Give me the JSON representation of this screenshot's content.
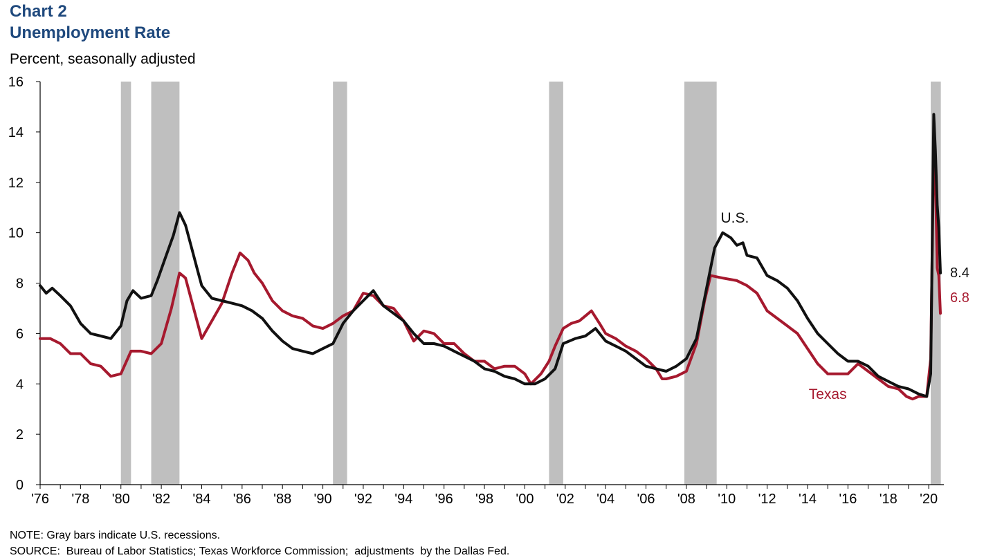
{
  "header": {
    "label": "Chart 2",
    "title": "Unemployment Rate",
    "subtitle": "Percent, seasonally adjusted"
  },
  "footer": {
    "note": "NOTE: Gray bars indicate U.S. recessions.",
    "source": "SOURCE:  Bureau of Labor Statistics; Texas Workforce Commission;  adjustments  by the Dallas Fed."
  },
  "colors": {
    "us": "#111111",
    "texas": "#a6192e",
    "recession": "#bfbfbf",
    "title": "#1f497d"
  },
  "chart_data": {
    "type": "line",
    "title": "Unemployment Rate",
    "subtitle": "Percent, seasonally adjusted",
    "xlabel": "",
    "ylabel": "",
    "xlim": [
      1976.0,
      2020.75
    ],
    "ylim": [
      0,
      16
    ],
    "yticks": [
      0,
      2,
      4,
      6,
      8,
      10,
      12,
      14,
      16
    ],
    "xticks": [
      {
        "value": 1976,
        "label": "'76"
      },
      {
        "value": 1978,
        "label": "'78"
      },
      {
        "value": 1980,
        "label": "'80"
      },
      {
        "value": 1982,
        "label": "'82"
      },
      {
        "value": 1984,
        "label": "'84"
      },
      {
        "value": 1986,
        "label": "'86"
      },
      {
        "value": 1988,
        "label": "'88"
      },
      {
        "value": 1990,
        "label": "'90"
      },
      {
        "value": 1992,
        "label": "'92"
      },
      {
        "value": 1994,
        "label": "'94"
      },
      {
        "value": 1996,
        "label": "'96"
      },
      {
        "value": 1998,
        "label": "'98"
      },
      {
        "value": 2000,
        "label": "'00"
      },
      {
        "value": 2002,
        "label": "'02"
      },
      {
        "value": 2004,
        "label": "'04"
      },
      {
        "value": 2006,
        "label": "'06"
      },
      {
        "value": 2008,
        "label": "'08"
      },
      {
        "value": 2010,
        "label": "'10"
      },
      {
        "value": 2012,
        "label": "'12"
      },
      {
        "value": 2014,
        "label": "'14"
      },
      {
        "value": 2016,
        "label": "'16"
      },
      {
        "value": 2018,
        "label": "'18"
      },
      {
        "value": 2020,
        "label": "'20"
      }
    ],
    "grid": false,
    "recessions": [
      [
        1980.0,
        1980.5
      ],
      [
        1981.5,
        1982.9
      ],
      [
        1990.5,
        1991.2
      ],
      [
        2001.2,
        2001.9
      ],
      [
        2007.9,
        2009.5
      ],
      [
        2020.1,
        2020.6
      ]
    ],
    "series": [
      {
        "name": "U.S.",
        "end_label": "8.4",
        "points": [
          [
            1976.0,
            7.9
          ],
          [
            1976.3,
            7.6
          ],
          [
            1976.6,
            7.8
          ],
          [
            1977.0,
            7.5
          ],
          [
            1977.5,
            7.1
          ],
          [
            1978.0,
            6.4
          ],
          [
            1978.5,
            6.0
          ],
          [
            1979.0,
            5.9
          ],
          [
            1979.5,
            5.8
          ],
          [
            1980.0,
            6.3
          ],
          [
            1980.3,
            7.3
          ],
          [
            1980.6,
            7.7
          ],
          [
            1981.0,
            7.4
          ],
          [
            1981.5,
            7.5
          ],
          [
            1981.8,
            8.1
          ],
          [
            1982.2,
            9.0
          ],
          [
            1982.6,
            9.9
          ],
          [
            1982.9,
            10.8
          ],
          [
            1983.2,
            10.3
          ],
          [
            1983.5,
            9.4
          ],
          [
            1983.8,
            8.5
          ],
          [
            1984.0,
            7.9
          ],
          [
            1984.5,
            7.4
          ],
          [
            1985.0,
            7.3
          ],
          [
            1985.5,
            7.2
          ],
          [
            1986.0,
            7.1
          ],
          [
            1986.5,
            6.9
          ],
          [
            1987.0,
            6.6
          ],
          [
            1987.5,
            6.1
          ],
          [
            1988.0,
            5.7
          ],
          [
            1988.5,
            5.4
          ],
          [
            1989.0,
            5.3
          ],
          [
            1989.5,
            5.2
          ],
          [
            1990.0,
            5.4
          ],
          [
            1990.5,
            5.6
          ],
          [
            1991.0,
            6.4
          ],
          [
            1991.5,
            6.9
          ],
          [
            1992.0,
            7.3
          ],
          [
            1992.5,
            7.7
          ],
          [
            1993.0,
            7.1
          ],
          [
            1993.5,
            6.8
          ],
          [
            1994.0,
            6.5
          ],
          [
            1994.5,
            6.0
          ],
          [
            1995.0,
            5.6
          ],
          [
            1995.5,
            5.6
          ],
          [
            1996.0,
            5.5
          ],
          [
            1996.5,
            5.3
          ],
          [
            1997.0,
            5.1
          ],
          [
            1997.5,
            4.9
          ],
          [
            1998.0,
            4.6
          ],
          [
            1998.5,
            4.5
          ],
          [
            1999.0,
            4.3
          ],
          [
            1999.5,
            4.2
          ],
          [
            2000.0,
            4.0
          ],
          [
            2000.5,
            4.0
          ],
          [
            2001.0,
            4.2
          ],
          [
            2001.5,
            4.6
          ],
          [
            2001.9,
            5.6
          ],
          [
            2002.5,
            5.8
          ],
          [
            2003.0,
            5.9
          ],
          [
            2003.5,
            6.2
          ],
          [
            2004.0,
            5.7
          ],
          [
            2004.5,
            5.5
          ],
          [
            2005.0,
            5.3
          ],
          [
            2005.5,
            5.0
          ],
          [
            2006.0,
            4.7
          ],
          [
            2006.5,
            4.6
          ],
          [
            2007.0,
            4.5
          ],
          [
            2007.5,
            4.7
          ],
          [
            2008.0,
            5.0
          ],
          [
            2008.5,
            5.8
          ],
          [
            2009.0,
            7.8
          ],
          [
            2009.4,
            9.4
          ],
          [
            2009.8,
            10.0
          ],
          [
            2010.2,
            9.8
          ],
          [
            2010.5,
            9.5
          ],
          [
            2010.8,
            9.6
          ],
          [
            2011.0,
            9.1
          ],
          [
            2011.5,
            9.0
          ],
          [
            2012.0,
            8.3
          ],
          [
            2012.5,
            8.1
          ],
          [
            2013.0,
            7.8
          ],
          [
            2013.5,
            7.3
          ],
          [
            2014.0,
            6.6
          ],
          [
            2014.5,
            6.0
          ],
          [
            2015.0,
            5.6
          ],
          [
            2015.5,
            5.2
          ],
          [
            2016.0,
            4.9
          ],
          [
            2016.5,
            4.9
          ],
          [
            2017.0,
            4.7
          ],
          [
            2017.5,
            4.3
          ],
          [
            2018.0,
            4.1
          ],
          [
            2018.5,
            3.9
          ],
          [
            2019.0,
            3.8
          ],
          [
            2019.5,
            3.6
          ],
          [
            2019.9,
            3.5
          ],
          [
            2020.1,
            4.4
          ],
          [
            2020.25,
            14.7
          ],
          [
            2020.33,
            13.3
          ],
          [
            2020.42,
            11.1
          ],
          [
            2020.5,
            10.2
          ],
          [
            2020.58,
            8.4
          ]
        ]
      },
      {
        "name": "Texas",
        "end_label": "6.8",
        "points": [
          [
            1976.0,
            5.8
          ],
          [
            1976.5,
            5.8
          ],
          [
            1977.0,
            5.6
          ],
          [
            1977.5,
            5.2
          ],
          [
            1978.0,
            5.2
          ],
          [
            1978.5,
            4.8
          ],
          [
            1979.0,
            4.7
          ],
          [
            1979.5,
            4.3
          ],
          [
            1980.0,
            4.4
          ],
          [
            1980.5,
            5.3
          ],
          [
            1981.0,
            5.3
          ],
          [
            1981.5,
            5.2
          ],
          [
            1982.0,
            5.6
          ],
          [
            1982.5,
            7.0
          ],
          [
            1982.9,
            8.4
          ],
          [
            1983.2,
            8.2
          ],
          [
            1983.6,
            7.0
          ],
          [
            1984.0,
            5.8
          ],
          [
            1984.5,
            6.5
          ],
          [
            1985.0,
            7.2
          ],
          [
            1985.5,
            8.4
          ],
          [
            1985.9,
            9.2
          ],
          [
            1986.3,
            8.9
          ],
          [
            1986.6,
            8.4
          ],
          [
            1987.0,
            8.0
          ],
          [
            1987.5,
            7.3
          ],
          [
            1988.0,
            6.9
          ],
          [
            1988.5,
            6.7
          ],
          [
            1989.0,
            6.6
          ],
          [
            1989.5,
            6.3
          ],
          [
            1990.0,
            6.2
          ],
          [
            1990.5,
            6.4
          ],
          [
            1991.0,
            6.7
          ],
          [
            1991.5,
            6.9
          ],
          [
            1992.0,
            7.6
          ],
          [
            1992.5,
            7.5
          ],
          [
            1993.0,
            7.1
          ],
          [
            1993.5,
            7.0
          ],
          [
            1994.0,
            6.5
          ],
          [
            1994.5,
            5.7
          ],
          [
            1995.0,
            6.1
          ],
          [
            1995.5,
            6.0
          ],
          [
            1996.0,
            5.6
          ],
          [
            1996.5,
            5.6
          ],
          [
            1997.0,
            5.2
          ],
          [
            1997.5,
            4.9
          ],
          [
            1998.0,
            4.9
          ],
          [
            1998.5,
            4.6
          ],
          [
            1999.0,
            4.7
          ],
          [
            1999.5,
            4.7
          ],
          [
            2000.0,
            4.4
          ],
          [
            2000.3,
            4.0
          ],
          [
            2000.8,
            4.4
          ],
          [
            2001.2,
            4.9
          ],
          [
            2001.5,
            5.5
          ],
          [
            2001.9,
            6.2
          ],
          [
            2002.3,
            6.4
          ],
          [
            2002.7,
            6.5
          ],
          [
            2003.0,
            6.7
          ],
          [
            2003.3,
            6.9
          ],
          [
            2003.7,
            6.4
          ],
          [
            2004.0,
            6.0
          ],
          [
            2004.5,
            5.8
          ],
          [
            2005.0,
            5.5
          ],
          [
            2005.5,
            5.3
          ],
          [
            2006.0,
            5.0
          ],
          [
            2006.5,
            4.6
          ],
          [
            2006.8,
            4.2
          ],
          [
            2007.0,
            4.2
          ],
          [
            2007.5,
            4.3
          ],
          [
            2008.0,
            4.5
          ],
          [
            2008.5,
            5.6
          ],
          [
            2008.9,
            7.3
          ],
          [
            2009.2,
            8.3
          ],
          [
            2009.8,
            8.2
          ],
          [
            2010.5,
            8.1
          ],
          [
            2011.0,
            7.9
          ],
          [
            2011.5,
            7.6
          ],
          [
            2012.0,
            6.9
          ],
          [
            2012.5,
            6.6
          ],
          [
            2013.0,
            6.3
          ],
          [
            2013.5,
            6.0
          ],
          [
            2014.0,
            5.4
          ],
          [
            2014.5,
            4.8
          ],
          [
            2015.0,
            4.4
          ],
          [
            2015.5,
            4.4
          ],
          [
            2016.0,
            4.4
          ],
          [
            2016.5,
            4.8
          ],
          [
            2017.0,
            4.5
          ],
          [
            2017.5,
            4.2
          ],
          [
            2018.0,
            3.9
          ],
          [
            2018.5,
            3.8
          ],
          [
            2018.9,
            3.5
          ],
          [
            2019.2,
            3.4
          ],
          [
            2019.5,
            3.5
          ],
          [
            2019.9,
            3.5
          ],
          [
            2020.1,
            5.0
          ],
          [
            2020.25,
            13.5
          ],
          [
            2020.33,
            12.5
          ],
          [
            2020.42,
            8.6
          ],
          [
            2020.5,
            8.3
          ],
          [
            2020.58,
            6.8
          ]
        ]
      }
    ],
    "annotations": [
      {
        "text": "U.S.",
        "x": 2010.4,
        "y": 10.4,
        "series": "U.S."
      },
      {
        "text": "Texas",
        "x": 2015.0,
        "y": 3.4,
        "series": "Texas"
      }
    ]
  }
}
